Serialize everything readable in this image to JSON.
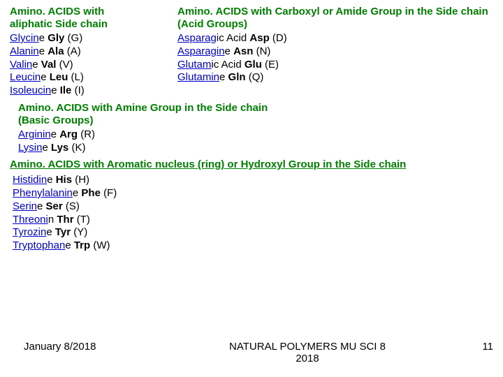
{
  "headings": {
    "aliphatic": "Amino. ACIDS with aliphatic Side chain",
    "acidic": "Amino. ACIDS with Carboxyl or Amide Group in the Side chain",
    "acidic_sub": "(Acid Groups)",
    "basic": "Amino. ACIDS with Amine Group in the Side chain",
    "basic_sub": "(Basic Groups)",
    "aromatic": "Amino. ACIDS with Aromatic nucleus (ring) or Hydroxyl Group in the Side chain"
  },
  "aliphatic": [
    {
      "ul": "Glycin",
      "suf": "e ",
      "abbr": "Gly",
      "let": " (G)"
    },
    {
      "ul": "Alanin",
      "suf": "e ",
      "abbr": "Ala",
      "let": " (A)"
    },
    {
      "ul": "Valin",
      "suf": "e ",
      "abbr": "Val",
      "let": " (V)"
    },
    {
      "ul": "Leucin",
      "suf": "e ",
      "abbr": "Leu",
      "let": " (L)"
    },
    {
      "ul": "Isoleucin",
      "suf": "e ",
      "abbr": "Ile",
      "let": " (I)"
    }
  ],
  "acidic": [
    {
      "ul": "Asparag",
      "suf": "ic Acid ",
      "abbr": "Asp",
      "let": " (D)"
    },
    {
      "ul": "Asparagin",
      "suf": "e ",
      "abbr": "Asn",
      "let": " (N)"
    },
    {
      "ul": "Glutam",
      "suf": "ic Acid ",
      "abbr": "Glu",
      "let": " (E)"
    },
    {
      "ul": "Glutamin",
      "suf": "e ",
      "abbr": "Gln",
      "let": " (Q)"
    }
  ],
  "basic": [
    {
      "ul": "Arginin",
      "suf": "e ",
      "abbr": "Arg",
      "let": " (R)"
    },
    {
      "ul": "Lysin",
      "suf": "e ",
      "abbr": "Lys",
      "let": " (K)"
    }
  ],
  "aromatic": [
    {
      "ul": "Histidin",
      "suf": "e ",
      "abbr": "His",
      "let": " (H)"
    },
    {
      "ul": "Phenylalanin",
      "suf": "e ",
      "abbr": "Phe",
      "let": " (F)"
    },
    {
      "ul": "Serin",
      "suf": "e ",
      "abbr": "Ser",
      "let": " (S)"
    },
    {
      "ul": "Threoni",
      "suf": "n ",
      "abbr": "Thr",
      "let": " (T)"
    },
    {
      "ul": "Tyrozin",
      "suf": "e ",
      "abbr": "Tyr",
      "let": " (Y)"
    },
    {
      "ul": "Tryptophan",
      "suf": "e ",
      "abbr": "Trp",
      "let": " (W)"
    }
  ],
  "footer": {
    "date": "January 8/2018",
    "center1": "NATURAL POLYMERS MU SCI 8",
    "center2": "2018",
    "page": "11"
  },
  "colors": {
    "heading": "#008000",
    "link": "#0000cc",
    "text": "#000000",
    "bg": "#ffffff"
  }
}
